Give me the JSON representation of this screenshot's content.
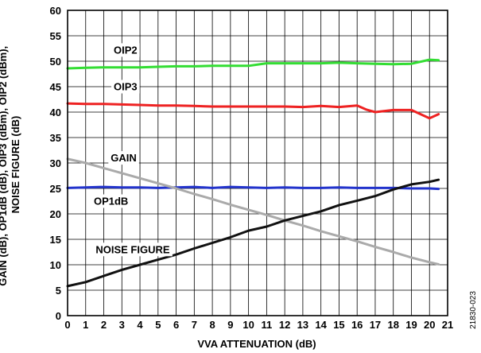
{
  "chart_data": {
    "type": "line",
    "xlabel": "VVA ATTENUATION (dB)",
    "ylabel": [
      "GAIN (dB), OP1dB (dB), OIP3 (dBm), OIP2 (dBm),",
      "NOISE FIGURE (dB)"
    ],
    "xlim": [
      0,
      21
    ],
    "ylim": [
      0,
      60
    ],
    "x_ticks": [
      0,
      1,
      2,
      3,
      4,
      5,
      6,
      7,
      8,
      9,
      10,
      11,
      12,
      13,
      14,
      15,
      16,
      17,
      18,
      19,
      20,
      21
    ],
    "y_ticks": [
      0,
      5,
      10,
      15,
      20,
      25,
      30,
      35,
      40,
      45,
      50,
      55,
      60
    ],
    "grid": true,
    "figure_id": "21830-023",
    "series": [
      {
        "name": "OIP2",
        "color": "#33dd33",
        "x": [
          0,
          1,
          2,
          3,
          4,
          5,
          6,
          7,
          8,
          9,
          10,
          11,
          12,
          13,
          14,
          15,
          16,
          17,
          18,
          19,
          20,
          20.5
        ],
        "y": [
          48.6,
          48.7,
          48.8,
          48.8,
          48.8,
          48.9,
          49.0,
          49.0,
          49.1,
          49.1,
          49.1,
          49.6,
          49.6,
          49.6,
          49.6,
          49.7,
          49.6,
          49.5,
          49.4,
          49.5,
          50.3,
          50.2
        ]
      },
      {
        "name": "OIP3",
        "color": "#ee2222",
        "x": [
          0,
          1,
          2,
          3,
          4,
          5,
          6,
          7,
          8,
          9,
          10,
          11,
          12,
          13,
          14,
          15,
          16,
          16.5,
          17,
          18,
          19,
          20,
          20.5
        ],
        "y": [
          41.7,
          41.6,
          41.6,
          41.5,
          41.4,
          41.3,
          41.3,
          41.2,
          41.1,
          41.1,
          41.1,
          41.1,
          41.1,
          41.0,
          41.2,
          41.0,
          41.3,
          40.5,
          40.0,
          40.4,
          40.4,
          38.8,
          39.6
        ]
      },
      {
        "name": "OP1dB",
        "color": "#2233cc",
        "x": [
          0,
          1,
          2,
          3,
          4,
          5,
          6,
          7,
          8,
          9,
          10,
          11,
          12,
          13,
          14,
          15,
          16,
          17,
          18,
          19,
          20,
          20.5
        ],
        "y": [
          25.1,
          25.2,
          25.3,
          25.2,
          25.2,
          25.1,
          25.2,
          25.3,
          25.1,
          25.3,
          25.2,
          25.1,
          25.2,
          25.1,
          25.1,
          25.2,
          25.1,
          25.1,
          25.1,
          25.0,
          25.0,
          24.9
        ]
      },
      {
        "name": "GAIN",
        "color": "#aaaaaa",
        "x": [
          0,
          1,
          2,
          3,
          4,
          5,
          6,
          7,
          8,
          9,
          10,
          11,
          12,
          13,
          14,
          15,
          16,
          17,
          18,
          19,
          20,
          20.5
        ],
        "y": [
          30.8,
          30.0,
          29.0,
          28.0,
          27.0,
          26.0,
          25.0,
          23.9,
          22.9,
          21.8,
          20.8,
          19.8,
          18.7,
          17.7,
          16.6,
          15.6,
          14.6,
          13.5,
          12.5,
          11.4,
          10.5,
          10.1
        ]
      },
      {
        "name": "NOISE FIGURE",
        "color": "#111111",
        "x": [
          0,
          1,
          2,
          3,
          4,
          5,
          6,
          7,
          8,
          9,
          10,
          11,
          12,
          13,
          14,
          15,
          16,
          17,
          18,
          19,
          20,
          20.5
        ],
        "y": [
          5.8,
          6.6,
          7.8,
          9.0,
          10.0,
          11.0,
          12.0,
          13.2,
          14.3,
          15.4,
          16.7,
          17.5,
          18.7,
          19.6,
          20.5,
          21.7,
          22.6,
          23.5,
          24.8,
          25.8,
          26.3,
          26.7
        ]
      }
    ],
    "annotations": [
      {
        "text": "OIP2",
        "x": 3.2,
        "y": 51.5
      },
      {
        "text": "OIP3",
        "x": 3.2,
        "y": 44.3
      },
      {
        "text": "GAIN",
        "x": 3.1,
        "y": 30.3
      },
      {
        "text": "OP1dB",
        "x": 2.4,
        "y": 21.8
      },
      {
        "text": "NOISE FIGURE",
        "x": 3.6,
        "y": 12.3
      }
    ]
  }
}
